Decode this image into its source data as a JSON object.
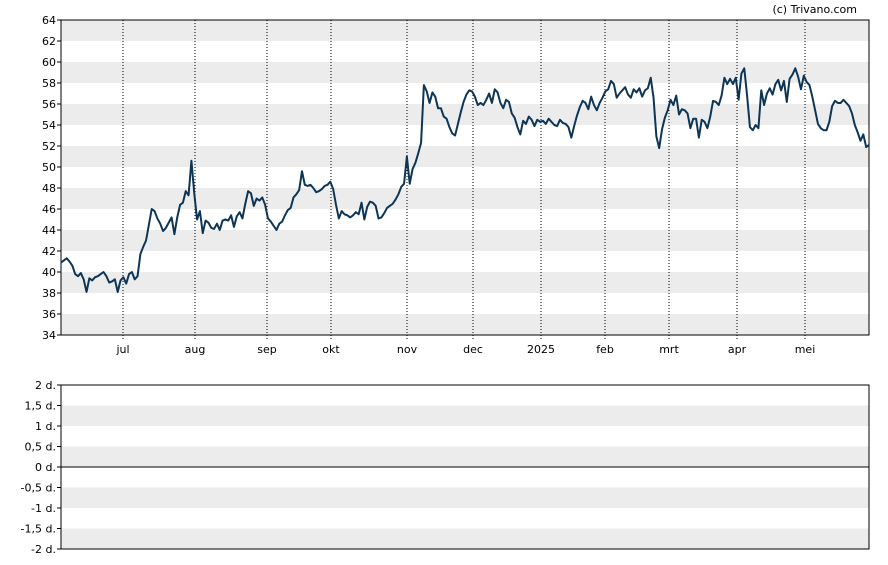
{
  "copyright": "(c) Trivano.com",
  "chart_data": [
    {
      "type": "line",
      "ylim": [
        34,
        64
      ],
      "y_ticks": [
        "34",
        "36",
        "38",
        "40",
        "42",
        "44",
        "46",
        "48",
        "50",
        "52",
        "54",
        "56",
        "58",
        "60",
        "62",
        "64"
      ],
      "x_ticks": [
        "jul",
        "aug",
        "sep",
        "okt",
        "nov",
        "dec",
        "2025",
        "feb",
        "mrt",
        "apr",
        "mei"
      ],
      "grid": "alternating horizontal bands, dotted vertical lines at month starts",
      "line_color": "#0d3556",
      "series": [
        {
          "values": [
            40.9,
            41.1,
            41.3,
            41.0,
            40.6,
            39.8,
            39.6,
            39.9,
            39.3,
            38.1,
            39.4,
            39.2,
            39.5,
            39.6,
            39.8,
            40.0,
            39.6,
            39.0,
            39.1,
            39.3,
            38.1,
            39.2,
            39.5,
            38.9,
            39.8,
            40.0,
            39.3,
            39.6,
            41.7,
            42.4,
            43.0,
            44.5,
            46.0,
            45.8,
            45.1,
            44.6,
            43.9,
            44.2,
            44.7,
            45.2,
            43.6,
            45.2,
            46.4,
            46.6,
            47.7,
            47.3,
            50.6,
            47.5,
            45.0,
            45.8,
            43.7,
            44.9,
            44.7,
            44.2,
            44.1,
            44.6,
            44.0,
            44.9,
            45.0,
            44.9,
            45.4,
            44.3,
            45.3,
            45.7,
            45.1,
            46.5,
            47.7,
            47.5,
            46.3,
            47.0,
            46.8,
            47.1,
            46.4,
            45.1,
            44.8,
            44.4,
            44.0,
            44.6,
            44.8,
            45.4,
            45.9,
            46.1,
            47.1,
            47.4,
            47.8,
            49.6,
            48.3,
            48.2,
            48.3,
            48.0,
            47.6,
            47.7,
            47.9,
            48.2,
            48.3,
            48.6,
            47.9,
            46.4,
            45.1,
            45.8,
            45.5,
            45.4,
            45.2,
            45.4,
            45.7,
            45.5,
            46.6,
            45.0,
            46.2,
            46.7,
            46.6,
            46.3,
            45.1,
            45.2,
            45.6,
            46.1,
            46.3,
            46.5,
            46.9,
            47.4,
            48.1,
            48.4,
            51.0,
            48.4,
            49.8,
            50.4,
            51.3,
            52.3,
            57.8,
            57.2,
            56.1,
            57.1,
            56.7,
            55.6,
            55.6,
            54.8,
            54.6,
            53.8,
            53.2,
            53.0,
            54.1,
            55.2,
            56.2,
            56.9,
            57.3,
            57.2,
            56.7,
            55.9,
            56.1,
            55.9,
            56.4,
            57.0,
            56.1,
            57.4,
            57.1,
            56.1,
            55.6,
            56.4,
            56.2,
            55.1,
            54.7,
            53.8,
            53.1,
            54.4,
            54.1,
            54.8,
            54.5,
            53.9,
            54.5,
            54.3,
            54.4,
            54.1,
            54.6,
            54.3,
            54.0,
            53.9,
            54.5,
            54.2,
            54.1,
            53.8,
            52.8,
            53.9,
            54.9,
            55.7,
            56.3,
            56.1,
            55.5,
            56.7,
            55.9,
            55.4,
            56.1,
            56.6,
            57.2,
            57.4,
            58.2,
            57.9,
            56.6,
            57.0,
            57.3,
            57.6,
            56.9,
            56.6,
            57.4,
            57.1,
            57.5,
            56.7,
            57.3,
            57.5,
            58.5,
            56.6,
            52.9,
            51.8,
            53.6,
            54.7,
            55.4,
            56.4,
            55.9,
            56.8,
            55.0,
            55.5,
            55.4,
            55.1,
            53.7,
            54.6,
            54.6,
            52.8,
            54.5,
            54.3,
            53.7,
            54.8,
            56.3,
            56.2,
            55.9,
            56.8,
            58.5,
            57.9,
            58.4,
            57.9,
            58.5,
            56.4,
            58.9,
            59.4,
            56.8,
            53.8,
            53.5,
            54.0,
            53.7,
            57.3,
            55.9,
            57.0,
            57.5,
            56.9,
            57.9,
            58.3,
            57.3,
            58.2,
            56.2,
            58.4,
            58.8,
            59.4,
            58.6,
            57.4,
            58.7,
            58.1,
            57.8,
            56.7,
            55.4,
            54.1,
            53.7,
            53.5,
            53.5,
            54.3,
            55.8,
            56.3,
            56.1,
            56.1,
            56.4,
            56.1,
            55.8,
            55.1,
            54.0,
            53.3,
            52.5,
            53.1,
            51.9,
            52.1
          ]
        }
      ]
    },
    {
      "type": "line",
      "ylim": [
        -2,
        2
      ],
      "y_ticks": [
        "2 d.",
        "1,5 d.",
        "1 d.",
        "0,5 d.",
        "0 d.",
        "-0,5 d.",
        "-1 d.",
        "-1,5 d.",
        "-2 d."
      ],
      "grid": "alternating horizontal bands, zero line",
      "series": []
    }
  ]
}
